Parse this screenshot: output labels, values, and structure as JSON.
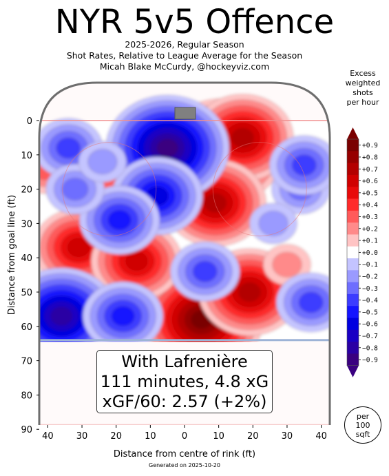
{
  "header": {
    "title": "NYR 5v5 Offence",
    "subtitle1": "2025-2026, Regular Season",
    "subtitle2": "Shot Rates, Relative to League Average for the Season",
    "subtitle3": "Micah Blake McCurdy, @hockeyviz.com"
  },
  "colorbar": {
    "title_line1": "Excess",
    "title_line2": "weighted",
    "title_line3": "shots",
    "title_line4": "per hour",
    "ticks": [
      "+0.9",
      "+0.8",
      "+0.7",
      "+0.6",
      "+0.5",
      "+0.4",
      "+0.3",
      "+0.2",
      "+0.1",
      "+0.0",
      "−0.1",
      "−0.2",
      "−0.3",
      "−0.4",
      "−0.5",
      "−0.6",
      "−0.7",
      "−0.8",
      "−0.9"
    ],
    "colors": [
      "#7a0000",
      "#960000",
      "#b30000",
      "#d00000",
      "#e80a0a",
      "#ff2a2a",
      "#ff5a5a",
      "#ff8a8a",
      "#ffc4c4",
      "#ffffff",
      "#c4c4ff",
      "#9a9aff",
      "#6e6eff",
      "#3c3cff",
      "#1414ff",
      "#0000e0",
      "#1a00c4",
      "#2a00a4",
      "#3a0080"
    ]
  },
  "info": {
    "line1": "With Lafrenière",
    "line2": "111 minutes, 4.8 xG",
    "line3": "xGF/60: 2.57 (+2%)"
  },
  "per_badge": {
    "line1": "per",
    "line2": "100",
    "line3": "sqft"
  },
  "footer": "Generated on 2025-10-20",
  "chart_data": {
    "type": "heatmap",
    "xlabel": "Distance from centre of rink (ft)",
    "ylabel": "Distance from goal line (ft)",
    "xlim": [
      -42.5,
      42.5
    ],
    "ylim": [
      90,
      -11
    ],
    "xticks": [
      "40",
      "30",
      "20",
      "10",
      "0",
      "10",
      "20",
      "30",
      "40"
    ],
    "xtick_values": [
      -40,
      -30,
      -20,
      -10,
      0,
      10,
      20,
      30,
      40
    ],
    "yticks": [
      "0",
      "10",
      "20",
      "30",
      "40",
      "50",
      "60",
      "70",
      "80",
      "90"
    ],
    "ytick_values": [
      0,
      10,
      20,
      30,
      40,
      50,
      60,
      70,
      80,
      90
    ],
    "colorscale": "excess weighted shots per hour, -0.9 to +0.9",
    "blobs": [
      {
        "x": 11,
        "y": 9,
        "value": 0.9
      },
      {
        "x": 17,
        "y": 5,
        "value": 0.7
      },
      {
        "x": 9,
        "y": 24,
        "value": 0.7
      },
      {
        "x": 5,
        "y": 58,
        "value": 0.9
      },
      {
        "x": 19,
        "y": 50,
        "value": 0.7
      },
      {
        "x": -31,
        "y": 37,
        "value": 0.6
      },
      {
        "x": -14,
        "y": 41,
        "value": 0.6
      },
      {
        "x": -21,
        "y": 20,
        "value": 0.3
      },
      {
        "x": -41,
        "y": 14,
        "value": 0.3
      },
      {
        "x": 30,
        "y": 42,
        "value": 0.2
      },
      {
        "x": -5,
        "y": 8,
        "value": -0.9
      },
      {
        "x": -8,
        "y": 22,
        "value": -0.6
      },
      {
        "x": -19,
        "y": 29,
        "value": -0.5
      },
      {
        "x": -36,
        "y": 57,
        "value": -0.8
      },
      {
        "x": -18,
        "y": 57,
        "value": -0.5
      },
      {
        "x": -34,
        "y": 8,
        "value": -0.4
      },
      {
        "x": -32,
        "y": 20,
        "value": -0.3
      },
      {
        "x": 34,
        "y": 20,
        "value": -0.3
      },
      {
        "x": 35,
        "y": 13,
        "value": -0.4
      },
      {
        "x": 37,
        "y": 53,
        "value": -0.4
      },
      {
        "x": 6,
        "y": 44,
        "value": -0.4
      },
      {
        "x": 26,
        "y": 30,
        "value": -0.2
      },
      {
        "x": -24,
        "y": 12,
        "value": -0.2
      }
    ]
  }
}
